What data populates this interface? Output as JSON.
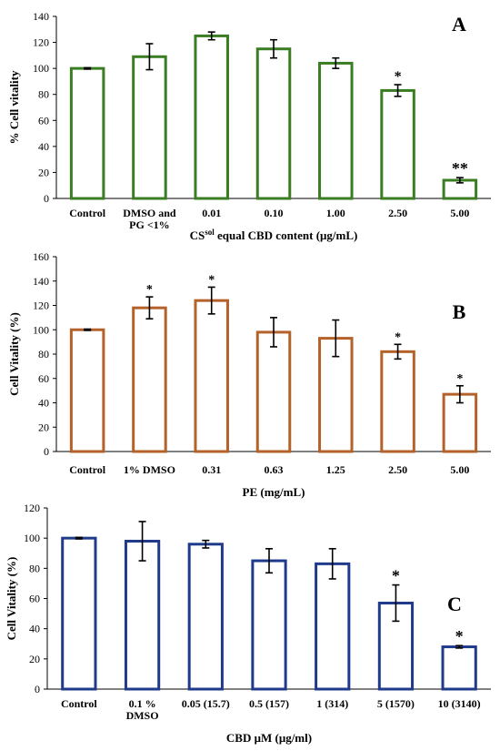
{
  "chart_data": [
    {
      "type": "bar",
      "panel": "A",
      "color": "#3a7d22",
      "categories": [
        [
          "Control"
        ],
        [
          "DMSO and",
          "PG <1%"
        ],
        [
          "0.01"
        ],
        [
          "0.10"
        ],
        [
          "1.00"
        ],
        [
          "2.50"
        ],
        [
          "5.00"
        ]
      ],
      "values": [
        100,
        109,
        125,
        115,
        104,
        83,
        14
      ],
      "errors": [
        0.5,
        10,
        3,
        7,
        4,
        4.5,
        2
      ],
      "significance": [
        "",
        "",
        "",
        "",
        "",
        "*",
        "**"
      ],
      "ylabel": "% Cell vitality",
      "xlabel_main": "CS",
      "xlabel_sup": "sol",
      "xlabel_rest": " equal CBD content (μg/mL)",
      "ylim": [
        0,
        140
      ],
      "yticks": [
        0,
        20,
        40,
        60,
        80,
        100,
        120,
        140
      ],
      "grid": false
    },
    {
      "type": "bar",
      "panel": "B",
      "color": "#b5612a",
      "categories": [
        [
          "Control"
        ],
        [
          "1% DMSO"
        ],
        [
          "0.31"
        ],
        [
          "0.63"
        ],
        [
          "1.25"
        ],
        [
          "2.50"
        ],
        [
          "5.00"
        ]
      ],
      "values": [
        100,
        118,
        124,
        98,
        93,
        82,
        47
      ],
      "errors": [
        0.5,
        9,
        11,
        12,
        15,
        6,
        7
      ],
      "significance": [
        "",
        "*",
        "*",
        "",
        "",
        "*",
        "*"
      ],
      "ylabel": "Cell Vitality (%)",
      "xlabel_main": "PE (mg/mL)",
      "ylim": [
        0,
        160
      ],
      "yticks": [
        0,
        20,
        40,
        60,
        80,
        100,
        120,
        140,
        160
      ],
      "grid": false
    },
    {
      "type": "bar",
      "panel": "C",
      "color": "#1f3a8a",
      "categories": [
        [
          "Control"
        ],
        [
          "0.1 %",
          "DMSO"
        ],
        [
          "0.05 (15.7)"
        ],
        [
          "0.5 (157)"
        ],
        [
          "1 (314)"
        ],
        [
          "5 (1570)"
        ],
        [
          "10 (3140)"
        ]
      ],
      "values": [
        100,
        98,
        96,
        85,
        83,
        57,
        28
      ],
      "errors": [
        0.5,
        13,
        2.5,
        8,
        10,
        12,
        0.8
      ],
      "significance": [
        "",
        "",
        "",
        "",
        "",
        "*",
        "*"
      ],
      "ylabel": "Cell Vitality  (%)",
      "xlabel_main": "CBD μM (μg/ml)",
      "ylim": [
        0,
        120
      ],
      "yticks": [
        0,
        20,
        40,
        60,
        80,
        100,
        120
      ],
      "grid": false
    }
  ]
}
